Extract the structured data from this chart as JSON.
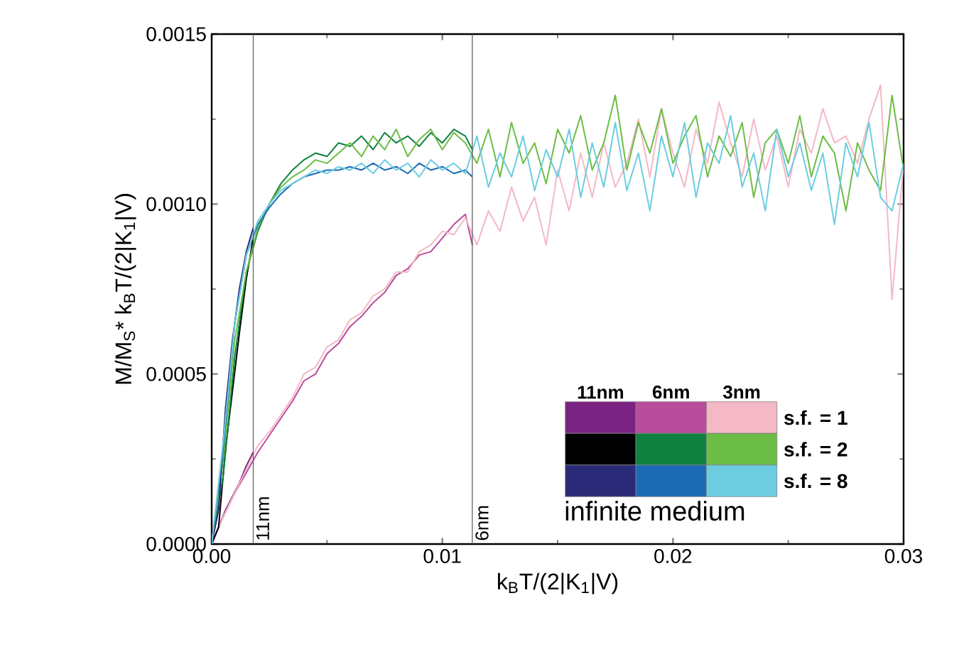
{
  "chart_data": {
    "type": "line",
    "xlabel": "k$_{B}$T/(2|K$_{1}$|V)",
    "ylabel": "M/M$_{S}$* k$_{B}$T/(2|K$_{1}$|V)",
    "xlim": [
      0,
      0.03
    ],
    "ylim": [
      0,
      0.0015
    ],
    "xticks": [
      {
        "value": 0,
        "label": "0.00"
      },
      {
        "value": 0.01,
        "label": "0.01"
      },
      {
        "value": 0.02,
        "label": "0.02"
      },
      {
        "value": 0.03,
        "label": "0.03"
      }
    ],
    "yticks": [
      {
        "value": 0,
        "label": "0.0000"
      },
      {
        "value": 0.0005,
        "label": "0.0005"
      },
      {
        "value": 0.001,
        "label": "0.0010"
      },
      {
        "value": 0.0015,
        "label": "0.0015"
      }
    ],
    "ref_lines": [
      {
        "axis": "x",
        "value": 0.0018,
        "label": "11nm",
        "color": "#555555"
      },
      {
        "axis": "x",
        "value": 0.0113,
        "label": "6nm",
        "color": "#555555"
      }
    ],
    "annotations": [
      "11nm",
      "6nm",
      "3nm",
      "s.f. = 1",
      "s.f. = 2",
      "s.f. = 8",
      "infinite medium"
    ],
    "series": [
      {
        "color": "#7b2383",
        "x": [
          0,
          0.0003,
          0.0006,
          0.0009,
          0.0012,
          0.0015,
          0.0018
        ],
        "values": [
          0,
          5e-05,
          0.0001,
          0.00014,
          0.00018,
          0.00023,
          0.00027
        ]
      },
      {
        "color": "#b84c9c",
        "x": [
          0,
          0.0005,
          0.001,
          0.0015,
          0.002,
          0.0025,
          0.003,
          0.0035,
          0.004,
          0.0045,
          0.005,
          0.0055,
          0.006,
          0.0065,
          0.007,
          0.0075,
          0.008,
          0.0085,
          0.009,
          0.0095,
          0.01,
          0.0105,
          0.011,
          0.0113
        ],
        "values": [
          0,
          8e-05,
          0.00015,
          0.00021,
          0.00027,
          0.00032,
          0.00037,
          0.00042,
          0.00048,
          0.0005,
          0.00056,
          0.00059,
          0.00064,
          0.00067,
          0.00071,
          0.00074,
          0.00079,
          0.00081,
          0.00085,
          0.00086,
          0.0009,
          0.00094,
          0.00097,
          0.00088
        ]
      },
      {
        "color": "#f4b8c6",
        "x": [
          0,
          0.0005,
          0.001,
          0.0015,
          0.002,
          0.0025,
          0.003,
          0.0035,
          0.004,
          0.0045,
          0.005,
          0.0055,
          0.006,
          0.0065,
          0.007,
          0.0075,
          0.008,
          0.0085,
          0.009,
          0.0095,
          0.01,
          0.0105,
          0.011,
          0.0115,
          0.012,
          0.0125,
          0.013,
          0.0135,
          0.014,
          0.0145,
          0.015,
          0.0155,
          0.016,
          0.0165,
          0.017,
          0.0175,
          0.018,
          0.0185,
          0.019,
          0.0195,
          0.02,
          0.0205,
          0.021,
          0.0215,
          0.022,
          0.0225,
          0.023,
          0.0235,
          0.024,
          0.0245,
          0.025,
          0.0255,
          0.026,
          0.0265,
          0.027,
          0.0275,
          0.028,
          0.0285,
          0.029,
          0.0295,
          0.03
        ],
        "values": [
          0,
          8e-05,
          0.00015,
          0.00022,
          0.00029,
          0.00033,
          0.00038,
          0.00043,
          0.0005,
          0.00052,
          0.00058,
          0.0006,
          0.00066,
          0.00068,
          0.00073,
          0.00075,
          0.0008,
          0.0008,
          0.00086,
          0.00088,
          0.00092,
          0.00091,
          0.00096,
          0.00088,
          0.00098,
          0.00092,
          0.00105,
          0.00095,
          0.00102,
          0.00088,
          0.0011,
          0.00098,
          0.00115,
          0.00102,
          0.00118,
          0.00105,
          0.00112,
          0.00125,
          0.00108,
          0.00128,
          0.00115,
          0.00105,
          0.00122,
          0.00112,
          0.0013,
          0.00118,
          0.00108,
          0.00125,
          0.0011,
          0.0012,
          0.00105,
          0.00122,
          0.00115,
          0.00128,
          0.00118,
          0.0012,
          0.00112,
          0.00125,
          0.00135,
          0.00072,
          0.00112
        ]
      },
      {
        "color": "#000000",
        "x": [
          0,
          0.0003,
          0.0006,
          0.0009,
          0.0012,
          0.0015,
          0.0018
        ],
        "values": [
          0,
          5e-05,
          0.00028,
          0.00045,
          0.00062,
          0.00078,
          0.0009
        ]
      },
      {
        "color": "#0e8040",
        "x": [
          0,
          0.0005,
          0.001,
          0.0015,
          0.002,
          0.0025,
          0.003,
          0.0035,
          0.004,
          0.0045,
          0.005,
          0.0055,
          0.006,
          0.0065,
          0.007,
          0.0075,
          0.008,
          0.0085,
          0.009,
          0.0095,
          0.01,
          0.0105,
          0.011,
          0.0113
        ],
        "values": [
          0,
          0.0002,
          0.00055,
          0.0008,
          0.00092,
          0.001,
          0.00106,
          0.0011,
          0.00113,
          0.00115,
          0.00114,
          0.00118,
          0.00117,
          0.0012,
          0.00116,
          0.00121,
          0.00118,
          0.0012,
          0.00117,
          0.00121,
          0.00118,
          0.00122,
          0.0012,
          0.00116
        ]
      },
      {
        "color": "#6cbd45",
        "x": [
          0,
          0.0005,
          0.001,
          0.0015,
          0.002,
          0.0025,
          0.003,
          0.0035,
          0.004,
          0.0045,
          0.005,
          0.0055,
          0.006,
          0.0065,
          0.007,
          0.0075,
          0.008,
          0.0085,
          0.009,
          0.0095,
          0.01,
          0.0105,
          0.011,
          0.0115,
          0.012,
          0.0125,
          0.013,
          0.0135,
          0.014,
          0.0145,
          0.015,
          0.0155,
          0.016,
          0.0165,
          0.017,
          0.0175,
          0.018,
          0.0185,
          0.019,
          0.0195,
          0.02,
          0.0205,
          0.021,
          0.0215,
          0.022,
          0.0225,
          0.023,
          0.0235,
          0.024,
          0.0245,
          0.025,
          0.0255,
          0.026,
          0.0265,
          0.027,
          0.0275,
          0.028,
          0.0285,
          0.029,
          0.0295,
          0.03
        ],
        "values": [
          0,
          0.00025,
          0.0006,
          0.0008,
          0.00093,
          0.001,
          0.00105,
          0.00108,
          0.0011,
          0.00113,
          0.00112,
          0.00115,
          0.00118,
          0.00114,
          0.0012,
          0.00116,
          0.00122,
          0.00114,
          0.00119,
          0.00122,
          0.00116,
          0.00121,
          0.00118,
          0.00112,
          0.00122,
          0.00108,
          0.00124,
          0.00112,
          0.00118,
          0.00106,
          0.00122,
          0.00115,
          0.00126,
          0.0011,
          0.00118,
          0.00132,
          0.0011,
          0.00124,
          0.00115,
          0.00128,
          0.00112,
          0.0012,
          0.00126,
          0.00108,
          0.0012,
          0.00114,
          0.00124,
          0.00102,
          0.00118,
          0.00122,
          0.00112,
          0.00126,
          0.00108,
          0.0012,
          0.00115,
          0.00098,
          0.00118,
          0.0011,
          0.00104,
          0.00132,
          0.0011
        ]
      },
      {
        "color": "#2a2a78",
        "x": [
          0,
          0.0003,
          0.0006,
          0.0009,
          0.0012,
          0.0015,
          0.0018
        ],
        "values": [
          0,
          0.0001,
          0.0004,
          0.0006,
          0.00075,
          0.00086,
          0.00093
        ]
      },
      {
        "color": "#1b6bb4",
        "x": [
          0,
          0.0005,
          0.001,
          0.0015,
          0.002,
          0.0025,
          0.003,
          0.0035,
          0.004,
          0.0045,
          0.005,
          0.0055,
          0.006,
          0.0065,
          0.007,
          0.0075,
          0.008,
          0.0085,
          0.009,
          0.0095,
          0.01,
          0.0105,
          0.011,
          0.0113
        ],
        "values": [
          0,
          0.00028,
          0.00065,
          0.00085,
          0.00094,
          0.00099,
          0.00103,
          0.00106,
          0.00108,
          0.00109,
          0.0011,
          0.0011,
          0.00111,
          0.0011,
          0.00112,
          0.0011,
          0.00111,
          0.00109,
          0.00112,
          0.0011,
          0.00111,
          0.00109,
          0.0011,
          0.00108
        ]
      },
      {
        "color": "#6ccde0",
        "x": [
          0,
          0.0005,
          0.001,
          0.0015,
          0.002,
          0.0025,
          0.003,
          0.0035,
          0.004,
          0.0045,
          0.005,
          0.0055,
          0.006,
          0.0065,
          0.007,
          0.0075,
          0.008,
          0.0085,
          0.009,
          0.0095,
          0.01,
          0.0105,
          0.011,
          0.0115,
          0.012,
          0.0125,
          0.013,
          0.0135,
          0.014,
          0.0145,
          0.015,
          0.0155,
          0.016,
          0.0165,
          0.017,
          0.0175,
          0.018,
          0.0185,
          0.019,
          0.0195,
          0.02,
          0.0205,
          0.021,
          0.0215,
          0.022,
          0.0225,
          0.023,
          0.0235,
          0.024,
          0.0245,
          0.025,
          0.0255,
          0.026,
          0.0265,
          0.027,
          0.0275,
          0.028,
          0.0285,
          0.029,
          0.0295,
          0.03
        ],
        "values": [
          0,
          0.0003,
          0.00065,
          0.00085,
          0.00095,
          0.001,
          0.00104,
          0.00106,
          0.00108,
          0.0011,
          0.00109,
          0.00111,
          0.0011,
          0.00112,
          0.00109,
          0.00113,
          0.0011,
          0.00112,
          0.00108,
          0.00113,
          0.0011,
          0.00112,
          0.00109,
          0.0012,
          0.00105,
          0.00115,
          0.00108,
          0.0012,
          0.00104,
          0.00116,
          0.00108,
          0.00122,
          0.00102,
          0.00118,
          0.00105,
          0.00124,
          0.00104,
          0.00115,
          0.00098,
          0.0012,
          0.00108,
          0.00124,
          0.00102,
          0.00118,
          0.00112,
          0.00126,
          0.00105,
          0.00115,
          0.00098,
          0.00122,
          0.00108,
          0.00118,
          0.00104,
          0.00115,
          0.00094,
          0.00118,
          0.00108,
          0.00124,
          0.00102,
          0.00098,
          0.00112
        ]
      }
    ]
  }
}
